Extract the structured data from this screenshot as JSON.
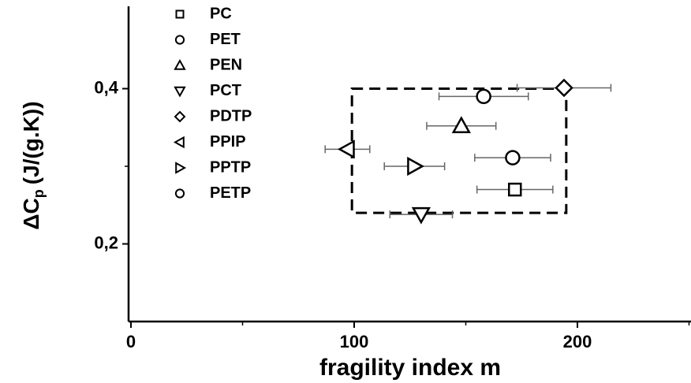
{
  "chart_data": {
    "type": "scatter",
    "xlabel": "fragility index m",
    "ylabel": "ΔC",
    "ylabel_sub": "p",
    "ylabel_unit": "(J/(g.K))",
    "xlim": [
      0,
      250
    ],
    "ylim": [
      0.1,
      0.5
    ],
    "xticks": [
      0,
      100,
      200
    ],
    "xminor_ticks": [
      50,
      150,
      250
    ],
    "yticks": [
      {
        "value": 0.4,
        "label": "0,4"
      },
      {
        "value": 0.2,
        "label": "0,2"
      }
    ],
    "yminor_ticks": [
      0.3
    ],
    "region": {
      "x": [
        99,
        195
      ],
      "y": [
        0.24,
        0.4
      ]
    },
    "series": [
      {
        "name": "PC",
        "marker": "square",
        "x": [
          172
        ],
        "values": [
          0.27
        ],
        "xerr": [
          17
        ]
      },
      {
        "name": "PET",
        "marker": "circle",
        "x": [
          158
        ],
        "values": [
          0.39
        ],
        "xerr": [
          20
        ]
      },
      {
        "name": "PEN",
        "marker": "triangle-up",
        "x": [
          148
        ],
        "values": [
          0.352
        ],
        "xerr": [
          15.5
        ]
      },
      {
        "name": "PCT",
        "marker": "triangle-down",
        "x": [
          130
        ],
        "values": [
          0.238
        ],
        "xerr": [
          14
        ]
      },
      {
        "name": "PDTP",
        "marker": "diamond",
        "x": [
          194
        ],
        "values": [
          0.401
        ],
        "xerr": [
          21
        ]
      },
      {
        "name": "PPIP",
        "marker": "triangle-left",
        "x": [
          97
        ],
        "values": [
          0.322
        ],
        "xerr": [
          10
        ]
      },
      {
        "name": "PPTP",
        "marker": "triangle-right",
        "x": [
          127
        ],
        "values": [
          0.3
        ],
        "xerr": [
          13.5
        ]
      },
      {
        "name": "PETP",
        "marker": "circle",
        "x": [
          171
        ],
        "values": [
          0.311
        ],
        "xerr": [
          17
        ]
      }
    ]
  }
}
